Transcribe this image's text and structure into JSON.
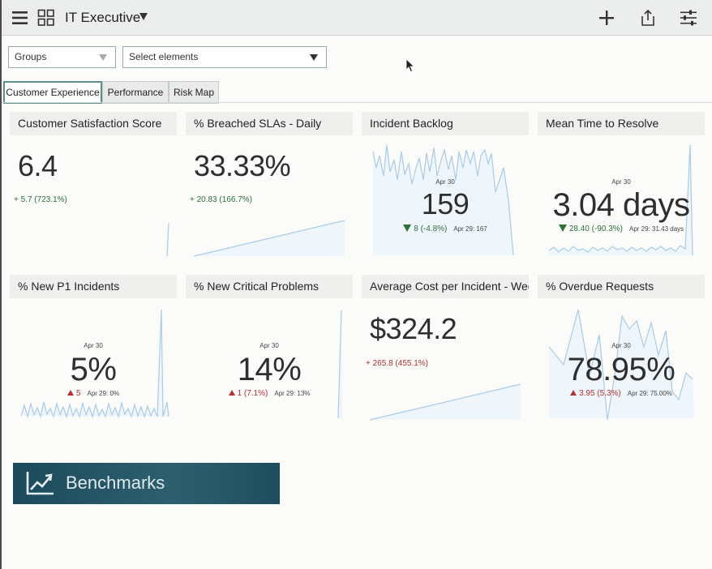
{
  "header": {
    "title": "IT Executive"
  },
  "filters": {
    "groups": "Groups",
    "elements": "Select elements"
  },
  "tabs": [
    "Customer Experience",
    "Performance",
    "Risk Map"
  ],
  "cards": [
    {
      "title": "Customer Satisfaction Score",
      "value": "6.4",
      "change": "+ 5.7 (723.1%)"
    },
    {
      "title": "% Breached SLAs - Daily",
      "value": "33.33%",
      "change": "+ 20.83 (166.7%)"
    },
    {
      "title": "Incident Backlog",
      "date": "Apr 30",
      "value": "159",
      "change": "8 (-4.8%)",
      "prev": "Apr 29: 167"
    },
    {
      "title": "Mean Time to Resolve",
      "date": "Apr 30",
      "value": "3.04 days",
      "change": "28.40 (-90.3%)",
      "prev": "Apr 29: 31.43 days"
    },
    {
      "title": "% New P1 Incidents",
      "date": "Apr 30",
      "value": "5%",
      "change": "5",
      "prev": "Apr 29: 0%"
    },
    {
      "title": "% New Critical Problems",
      "date": "Apr 30",
      "value": "14%",
      "change": "1 (7.1%)",
      "prev": "Apr 29: 13%"
    },
    {
      "title": "Average Cost per Incident - Weekly",
      "value": "$324.2",
      "change": "+ 265.8 (455.1%)"
    },
    {
      "title": "% Overdue Requests",
      "date": "Apr 30",
      "value": "78.95%",
      "change": "3.95 (5.3%)",
      "prev": "Apr 29: 75.00%"
    }
  ],
  "benchmarks": {
    "label": "Benchmarks"
  },
  "icons": [
    "menu-icon",
    "dashboard-grid-icon",
    "add-icon",
    "share-icon",
    "filter-settings-icon",
    "trend-chart-icon"
  ],
  "colors": {
    "accent": "#5f8f8c",
    "positive": "#2f6f3a",
    "negative": "#b03232",
    "sparkline": "#a9cbe6",
    "banner": "#1c4a5c"
  }
}
